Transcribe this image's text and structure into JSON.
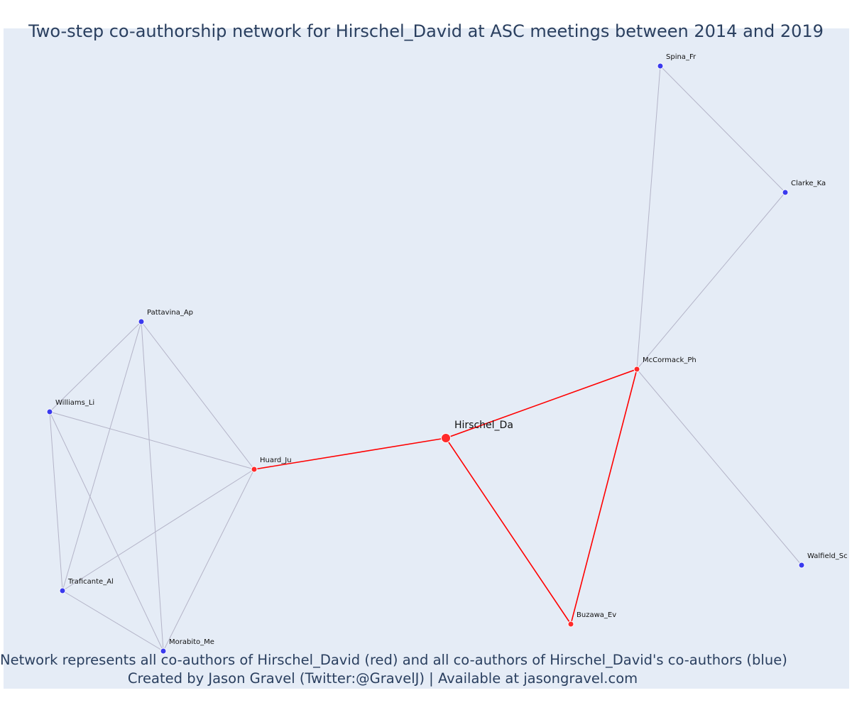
{
  "title": "Two-step co-authorship network for Hirschel_David at ASC meetings between 2014 and 2019",
  "captions": [
    "Network represents all co-authors of Hirschel_David (red) and all co-authors of Hirschel_David's co-authors (blue)",
    "Created by Jason Gravel (Twitter:@GravelJ) | Available at jasongravel.com"
  ],
  "colors": {
    "background": "#e5ecf6",
    "title": "#2a3f5f",
    "ego": "#ff2a2a",
    "first_degree": "#ff2a2a",
    "second_degree": "#3a3aee",
    "red_edge": "#ff0000",
    "gray_edge": "#b4b4c8"
  },
  "nodes": [
    {
      "id": "Hirschel_Da",
      "label": "Hirschel_Da",
      "group": "ego"
    },
    {
      "id": "Huard_Ju",
      "label": "Huard_Ju",
      "group": "first_degree"
    },
    {
      "id": "McCormack_Ph",
      "label": "McCormack_Ph",
      "group": "first_degree"
    },
    {
      "id": "Buzawa_Ev",
      "label": "Buzawa_Ev",
      "group": "first_degree"
    },
    {
      "id": "Pattavina_Ap",
      "label": "Pattavina_Ap",
      "group": "second_degree"
    },
    {
      "id": "Williams_Li",
      "label": "Williams_Li",
      "group": "second_degree"
    },
    {
      "id": "Traficante_Al",
      "label": "Traficante_Al",
      "group": "second_degree"
    },
    {
      "id": "Morabito_Me",
      "label": "Morabito_Me",
      "group": "second_degree"
    },
    {
      "id": "Spina_Fr",
      "label": "Spina_Fr",
      "group": "second_degree"
    },
    {
      "id": "Clarke_Ka",
      "label": "Clarke_Ka",
      "group": "second_degree"
    },
    {
      "id": "Walfield_Sc",
      "label": "Walfield_Sc",
      "group": "second_degree"
    }
  ],
  "edges": [
    {
      "source": "Hirschel_Da",
      "target": "Huard_Ju",
      "type": "red"
    },
    {
      "source": "Hirschel_Da",
      "target": "McCormack_Ph",
      "type": "red"
    },
    {
      "source": "Hirschel_Da",
      "target": "Buzawa_Ev",
      "type": "red"
    },
    {
      "source": "McCormack_Ph",
      "target": "Buzawa_Ev",
      "type": "red"
    },
    {
      "source": "Huard_Ju",
      "target": "Pattavina_Ap",
      "type": "gray"
    },
    {
      "source": "Huard_Ju",
      "target": "Williams_Li",
      "type": "gray"
    },
    {
      "source": "Huard_Ju",
      "target": "Traficante_Al",
      "type": "gray"
    },
    {
      "source": "Huard_Ju",
      "target": "Morabito_Me",
      "type": "gray"
    },
    {
      "source": "Pattavina_Ap",
      "target": "Williams_Li",
      "type": "gray"
    },
    {
      "source": "Pattavina_Ap",
      "target": "Traficante_Al",
      "type": "gray"
    },
    {
      "source": "Pattavina_Ap",
      "target": "Morabito_Me",
      "type": "gray"
    },
    {
      "source": "Williams_Li",
      "target": "Traficante_Al",
      "type": "gray"
    },
    {
      "source": "Williams_Li",
      "target": "Morabito_Me",
      "type": "gray"
    },
    {
      "source": "Traficante_Al",
      "target": "Morabito_Me",
      "type": "gray"
    },
    {
      "source": "McCormack_Ph",
      "target": "Spina_Fr",
      "type": "gray"
    },
    {
      "source": "McCormack_Ph",
      "target": "Clarke_Ka",
      "type": "gray"
    },
    {
      "source": "Spina_Fr",
      "target": "Clarke_Ka",
      "type": "gray"
    },
    {
      "source": "McCormack_Ph",
      "target": "Walfield_Sc",
      "type": "gray"
    }
  ]
}
